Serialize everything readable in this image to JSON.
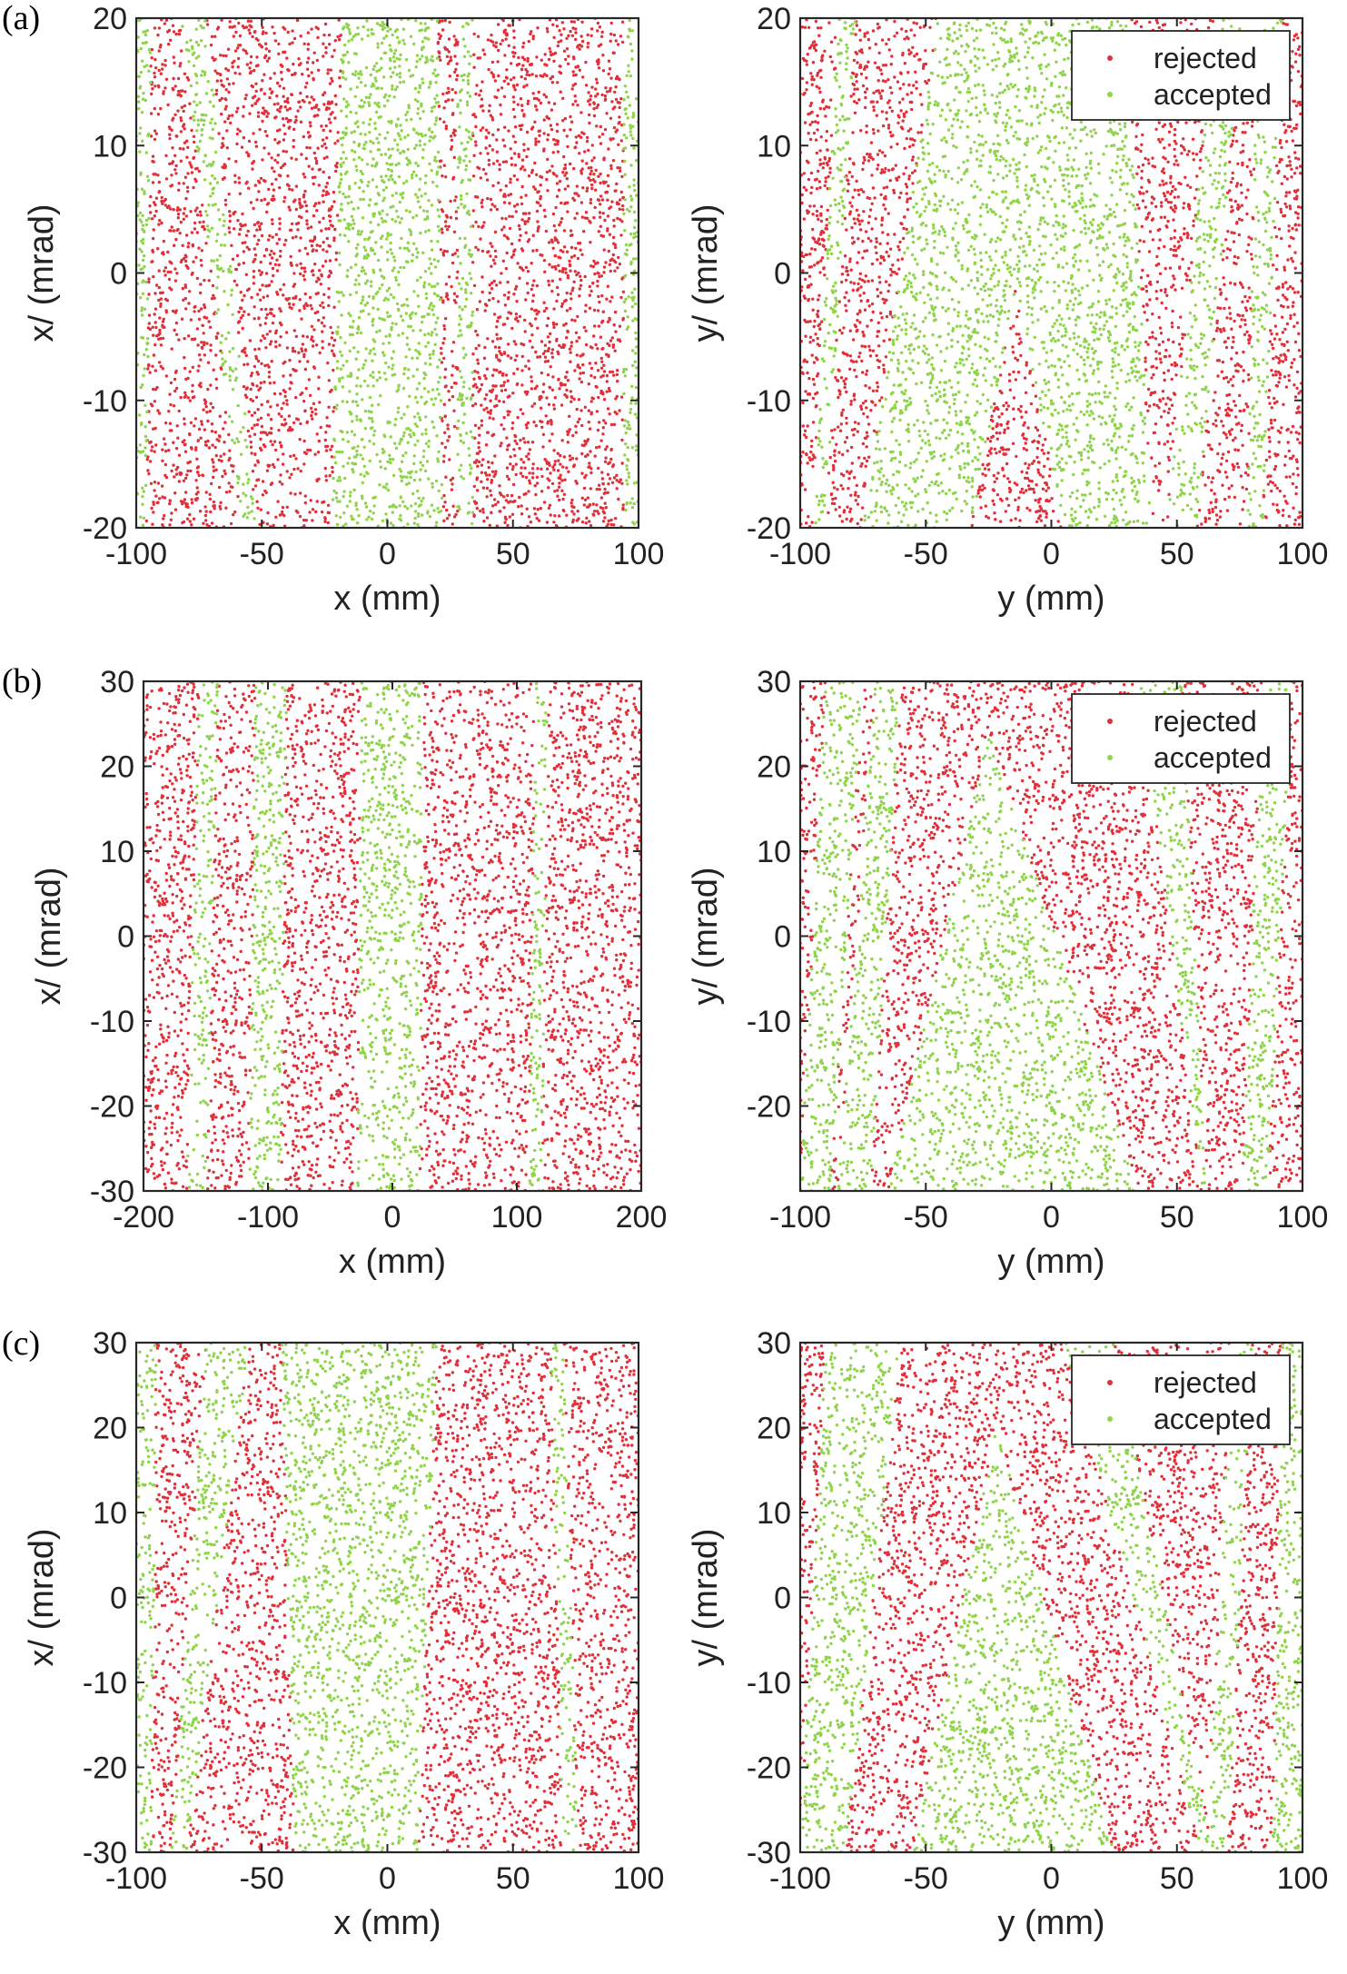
{
  "figure": {
    "panel_labels": [
      "(a)",
      "(b)",
      "(c)"
    ],
    "colors": {
      "rejected": "#e0303a",
      "accepted": "#8fd44a",
      "axis": "#262626"
    },
    "legend": {
      "rejected": "rejected",
      "accepted": "accepted"
    }
  },
  "chart_data": [
    {
      "type": "scatter",
      "panel": "(a)",
      "side": "left",
      "xlabel": "x (mm)",
      "ylabel": "x/ (mrad)",
      "xlim": [
        -100,
        100
      ],
      "ylim": [
        -20,
        20
      ],
      "xticks": [
        -100,
        -50,
        0,
        50,
        100
      ],
      "yticks": [
        -20,
        -10,
        0,
        10,
        20
      ],
      "legend": null,
      "grid": false,
      "series": [
        {
          "name": "rejected",
          "color": "#e0303a",
          "description": "uniform background"
        },
        {
          "name": "accepted",
          "color": "#8fd44a",
          "bands": [
            {
              "shape": "band",
              "x_top": [
                -18,
                20
              ],
              "x_bottom": [
                -22,
                22
              ]
            },
            {
              "shape": "band",
              "x_top": [
                -82,
                -72
              ],
              "x_bottom": [
                -58,
                -52
              ]
            },
            {
              "shape": "band",
              "x_top": [
                28,
                34
              ],
              "x_bottom": [
                28,
                34
              ]
            },
            {
              "shape": "band",
              "x_top": [
                -100,
                -94
              ],
              "x_bottom": [
                -100,
                -96
              ]
            },
            {
              "shape": "band",
              "x_top": [
                94,
                100
              ],
              "x_bottom": [
                94,
                100
              ]
            }
          ]
        }
      ]
    },
    {
      "type": "scatter",
      "panel": "(a)",
      "side": "right",
      "xlabel": "y (mm)",
      "ylabel": "y/ (mrad)",
      "xlim": [
        -100,
        100
      ],
      "ylim": [
        -20,
        20
      ],
      "xticks": [
        -100,
        -50,
        0,
        50,
        100
      ],
      "yticks": [
        -20,
        -10,
        0,
        10,
        20
      ],
      "legend": "top-right",
      "grid": false,
      "series": [
        {
          "name": "rejected",
          "color": "#e0303a",
          "description": "uniform background"
        },
        {
          "name": "accepted",
          "color": "#8fd44a",
          "bands": [
            {
              "shape": "band",
              "x_top": [
                -45,
                30
              ],
              "x_bottom": [
                -75,
                40
              ]
            },
            {
              "shape": "notch",
              "apex": [
                -14,
                -1
              ],
              "base": [
                -32,
                5
              ]
            },
            {
              "shape": "band",
              "x_top": [
                -85,
                -78
              ],
              "x_bottom": [
                -95,
                -90
              ]
            },
            {
              "shape": "band",
              "x_top": [
                65,
                76
              ],
              "x_bottom": [
                46,
                58
              ]
            },
            {
              "shape": "band",
              "x_top": [
                82,
                92
              ],
              "x_bottom": [
                78,
                84
              ]
            }
          ]
        }
      ]
    },
    {
      "type": "scatter",
      "panel": "(b)",
      "side": "left",
      "xlabel": "x (mm)",
      "ylabel": "x/ (mrad)",
      "xlim": [
        -200,
        200
      ],
      "ylim": [
        -30,
        30
      ],
      "xticks": [
        -200,
        -100,
        0,
        100,
        200
      ],
      "yticks": [
        -30,
        -20,
        -10,
        0,
        10,
        20,
        30
      ],
      "legend": null,
      "grid": false,
      "series": [
        {
          "name": "rejected",
          "color": "#e0303a",
          "description": "uniform background"
        },
        {
          "name": "accepted",
          "color": "#8fd44a",
          "bands": [
            {
              "shape": "band",
              "x_top": [
                -25,
                25
              ],
              "x_bottom": [
                -28,
                22
              ]
            },
            {
              "shape": "band",
              "x_top": [
                -110,
                -85
              ],
              "x_bottom": [
                -115,
                -90
              ]
            },
            {
              "shape": "band",
              "x_top": [
                -155,
                -140
              ],
              "x_bottom": [
                -165,
                -150
              ]
            },
            {
              "shape": "band",
              "x_top": [
                115,
                125
              ],
              "x_bottom": [
                110,
                120
              ]
            }
          ]
        }
      ]
    },
    {
      "type": "scatter",
      "panel": "(b)",
      "side": "right",
      "xlabel": "y (mm)",
      "ylabel": "y/ (mrad)",
      "xlim": [
        -100,
        100
      ],
      "ylim": [
        -30,
        30
      ],
      "xticks": [
        -100,
        -50,
        0,
        50,
        100
      ],
      "yticks": [
        -20,
        -10,
        0,
        10,
        20,
        30
      ],
      "legend": "top-right",
      "grid": false,
      "series": [
        {
          "name": "rejected",
          "color": "#e0303a",
          "description": "uniform background"
        },
        {
          "name": "accepted",
          "color": "#8fd44a",
          "bands": [
            {
              "shape": "triangle",
              "apex": [
                -25,
                24
              ],
              "base": [
                -65,
                35
              ]
            },
            {
              "shape": "band",
              "x_top": [
                -90,
                -75
              ],
              "x_bottom": [
                -100,
                -88
              ]
            },
            {
              "shape": "band",
              "x_top": [
                -70,
                -60
              ],
              "x_bottom": [
                -85,
                -72
              ]
            },
            {
              "shape": "band",
              "x_top": [
                35,
                52
              ],
              "x_bottom": [
                60,
                62
              ]
            },
            {
              "shape": "band",
              "x_top": [
                84,
                96
              ],
              "x_bottom": [
                76,
                86
              ]
            }
          ]
        }
      ]
    },
    {
      "type": "scatter",
      "panel": "(c)",
      "side": "left",
      "xlabel": "x (mm)",
      "ylabel": "x/ (mrad)",
      "xlim": [
        -100,
        100
      ],
      "ylim": [
        -30,
        30
      ],
      "xticks": [
        -100,
        -50,
        0,
        50,
        100
      ],
      "yticks": [
        -30,
        -20,
        -10,
        0,
        10,
        20,
        30
      ],
      "legend": null,
      "grid": false,
      "series": [
        {
          "name": "rejected",
          "color": "#e0303a",
          "description": "uniform background"
        },
        {
          "name": "accepted",
          "color": "#8fd44a",
          "bands": [
            {
              "shape": "band",
              "x_top": [
                -42,
                20
              ],
              "x_bottom": [
                -37,
                12
              ]
            },
            {
              "shape": "band",
              "x_top": [
                -72,
                -55
              ],
              "x_bottom": [
                -86,
                -80
              ]
            },
            {
              "shape": "band",
              "x_top": [
                -100,
                -92
              ],
              "x_bottom": [
                -100,
                -94
              ]
            },
            {
              "shape": "band",
              "x_top": [
                65,
                70
              ],
              "x_bottom": [
                70,
                76
              ]
            }
          ]
        }
      ]
    },
    {
      "type": "scatter",
      "panel": "(c)",
      "side": "right",
      "xlabel": "y (mm)",
      "ylabel": "y/ (mrad)",
      "xlim": [
        -100,
        100
      ],
      "ylim": [
        -30,
        30
      ],
      "xticks": [
        -100,
        -50,
        0,
        50,
        100
      ],
      "yticks": [
        -30,
        -20,
        -10,
        0,
        10,
        20,
        30
      ],
      "legend": "top-right",
      "grid": false,
      "series": [
        {
          "name": "rejected",
          "color": "#e0303a",
          "description": "uniform background"
        },
        {
          "name": "accepted",
          "color": "#8fd44a",
          "bands": [
            {
              "shape": "triangle",
              "apex": [
                -22,
                20
              ],
              "base": [
                -55,
                25
              ]
            },
            {
              "shape": "band",
              "x_top": [
                -90,
                -60
              ],
              "x_bottom": [
                -100,
                -82
              ]
            },
            {
              "shape": "band",
              "x_top": [
                5,
                25
              ],
              "x_bottom": [
                60,
                64
              ]
            },
            {
              "shape": "band",
              "x_top": [
                72,
                80
              ],
              "x_bottom": [
                62,
                70
              ]
            },
            {
              "shape": "band",
              "x_top": [
                92,
                100
              ],
              "x_bottom": [
                88,
                100
              ]
            }
          ]
        }
      ]
    }
  ]
}
